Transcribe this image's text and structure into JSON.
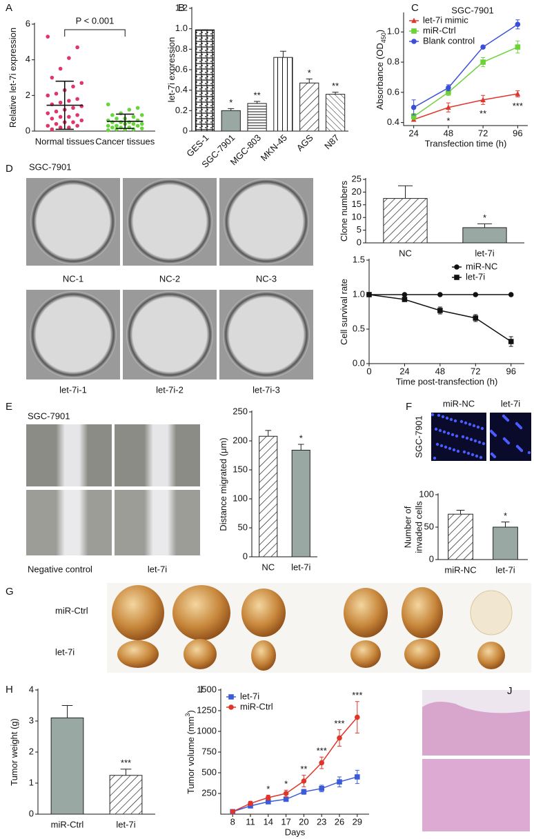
{
  "panel_letters": [
    "A",
    "B",
    "C",
    "D",
    "E",
    "F",
    "G",
    "H",
    "I",
    "J"
  ],
  "images": {
    "d_cell_line": "SGC-7901",
    "d_labels": [
      "NC-1",
      "NC-2",
      "NC-3",
      "let-7i-1",
      "let-7i-2",
      "let-7i-3"
    ],
    "e_cell_line": "SGC-7901",
    "e_labels": [
      "Negative control",
      "let-7i"
    ],
    "f_cell_line": "SGC-7901",
    "f_labels": [
      "miR-NC",
      "let-7i"
    ],
    "g_labels": [
      "miR-Ctrl",
      "let-7i"
    ]
  },
  "chart_data": [
    {
      "type": "strip",
      "ylabel": "Relative let-7i expression",
      "annotation": "P < 0.001",
      "categories": [
        "Normal tissues",
        "Cancer tissues"
      ],
      "colors": [
        "#e0356a",
        "#66d43a"
      ],
      "values": [
        [
          5.3,
          4.7,
          4.1,
          3.5,
          3.0,
          2.7,
          2.5,
          2.3,
          2.1,
          2.0,
          1.8,
          1.7,
          1.6,
          1.5,
          1.4,
          1.3,
          1.2,
          1.1,
          1.0,
          0.9,
          0.8,
          0.8,
          0.7,
          0.6,
          0.5,
          0.5,
          0.4,
          0.3,
          0.3,
          0.2,
          0.2,
          0.1
        ],
        [
          1.5,
          1.3,
          1.2,
          1.0,
          0.9,
          0.9,
          0.8,
          0.7,
          0.7,
          0.6,
          0.6,
          0.5,
          0.5,
          0.5,
          0.4,
          0.4,
          0.4,
          0.3,
          0.3,
          0.3,
          0.2,
          0.2,
          0.2,
          0.15,
          0.1,
          0.1,
          0.1,
          0.05
        ]
      ],
      "means": [
        1.45,
        0.55
      ],
      "errors": [
        1.35,
        0.4
      ],
      "ylim": [
        0,
        6
      ],
      "yticks": [
        0,
        2,
        4,
        6
      ]
    },
    {
      "type": "bar",
      "ylabel": "let-7i expression",
      "categories": [
        "GES-1",
        "SGC-7901",
        "MGC-803",
        "MKN-45",
        "AGS",
        "N87"
      ],
      "values": [
        0.99,
        0.2,
        0.27,
        0.72,
        0.47,
        0.36
      ],
      "errors": [
        0,
        0.02,
        0.02,
        0.06,
        0.04,
        0.02
      ],
      "annotations": [
        null,
        "*",
        "**",
        null,
        "*",
        "**"
      ],
      "patterns": [
        "grid",
        "solid",
        "horizontal",
        "vertical",
        "diagonal",
        "backdiagonal"
      ],
      "color": "#9aa8a4",
      "xtick_rotation": 45,
      "ylim": [
        0,
        1.2
      ],
      "yticks": [
        0,
        0.2,
        0.4,
        0.6,
        0.8,
        {
          "value": 1,
          "label": "1.0"
        },
        1.2
      ]
    },
    {
      "type": "line",
      "title": "SGC-7901",
      "ylabel": "Absorbance (OD",
      "ylabel_sub": "450",
      "ylabel_end": ")",
      "xlabel": "Transfection time (h)",
      "x": [
        24,
        48,
        72,
        96
      ],
      "xlim": [
        17,
        103
      ],
      "xticks": [
        24,
        48,
        72,
        96
      ],
      "ylim": [
        0.38,
        1.12
      ],
      "yticks": [
        0.4,
        0.6,
        0.8,
        {
          "value": 1,
          "label": "1.0"
        }
      ],
      "legend": "upper left",
      "series": [
        {
          "name": "let-7i mimic",
          "color": "#e0352b",
          "marker": "triangle",
          "values": [
            0.42,
            0.5,
            0.55,
            0.59
          ],
          "errors": [
            0.01,
            0.03,
            0.03,
            0.02
          ]
        },
        {
          "name": "miR-Ctrl",
          "color": "#6dd13a",
          "marker": "square",
          "values": [
            0.44,
            0.6,
            0.8,
            0.9
          ],
          "errors": [
            0.02,
            0.02,
            0.03,
            0.04
          ]
        },
        {
          "name": "Blank control",
          "color": "#3b4fd8",
          "marker": "circle",
          "values": [
            0.5,
            0.63,
            0.9,
            1.05
          ],
          "errors": [
            0.05,
            0.02,
            0.01,
            0.03
          ]
        }
      ],
      "annotations": [
        null,
        "*",
        "**",
        "***"
      ]
    },
    {
      "type": "bar",
      "ylabel": "Clone numbers",
      "categories": [
        "NC",
        "let-7i"
      ],
      "values": [
        17.5,
        6
      ],
      "errors": [
        5,
        1.5
      ],
      "annotations": [
        null,
        "*"
      ],
      "patterns": [
        "diagonal",
        "solid"
      ],
      "color": "#9aa8a4",
      "ylim": [
        0,
        25
      ],
      "yticks": [
        0,
        5,
        10,
        15,
        20,
        25
      ]
    },
    {
      "type": "line",
      "ylabel": "Cell survival rate",
      "xlabel": "Time post-transfection (h)",
      "x": [
        0,
        24,
        48,
        72,
        96
      ],
      "xlim": [
        0,
        105
      ],
      "xticks": [
        0,
        24,
        48,
        72,
        96
      ],
      "ylim": [
        0,
        1.5
      ],
      "yticks": [
        {
          "value": 0,
          "label": "0.0"
        },
        0.5,
        {
          "value": 1,
          "label": "1.0"
        },
        1.5
      ],
      "legend": "upper right",
      "series": [
        {
          "name": "miR-NC",
          "color": "#111111",
          "marker": "circle",
          "values": [
            1,
            1,
            1,
            1,
            1
          ],
          "errors": [
            0,
            0.01,
            0.01,
            0.01,
            0.01
          ]
        },
        {
          "name": "let-7i",
          "color": "#111111",
          "marker": "square",
          "values": [
            1,
            0.93,
            0.77,
            0.66,
            0.32
          ],
          "errors": [
            0,
            0.02,
            0.05,
            0.05,
            0.07
          ]
        }
      ]
    },
    {
      "type": "bar",
      "ylabel": "Distance migrated (μm)",
      "categories": [
        "NC",
        "let-7i"
      ],
      "values": [
        208,
        184
      ],
      "errors": [
        10,
        10
      ],
      "annotations": [
        null,
        "*"
      ],
      "patterns": [
        "diagonal",
        "solid"
      ],
      "color": "#9aa8a4",
      "ylim": [
        0,
        250
      ],
      "yticks": [
        0,
        50,
        100,
        150,
        200,
        250
      ]
    },
    {
      "type": "bar",
      "ylabel": [
        "Number of",
        "invaded cells"
      ],
      "categories": [
        "miR-NC",
        "let-7i"
      ],
      "values": [
        70,
        50
      ],
      "errors": [
        6,
        8
      ],
      "annotations": [
        null,
        "*"
      ],
      "patterns": [
        "diagonal",
        "solid"
      ],
      "color": "#9aa8a4",
      "ylim": [
        0,
        100
      ],
      "yticks": [
        0,
        50,
        100
      ]
    },
    {
      "type": "bar",
      "ylabel": "Tumor weight (g)",
      "categories": [
        "miR-Ctrl",
        "let-7i"
      ],
      "values": [
        3.1,
        1.25
      ],
      "errors": [
        0.4,
        0.2
      ],
      "annotations": [
        null,
        "***"
      ],
      "patterns": [
        "solid",
        "diagonal"
      ],
      "color": "#9aa8a4",
      "ylim": [
        0,
        4
      ],
      "yticks": [
        0,
        1,
        2,
        3,
        4
      ]
    },
    {
      "type": "line",
      "ylabel": "Tumor volume (mm",
      "ylabel_sup": "3",
      "ylabel_end": ")",
      "xlabel": "Days",
      "x": [
        8,
        11,
        14,
        17,
        20,
        23,
        26,
        29
      ],
      "xlim": [
        6,
        31
      ],
      "xticks": [
        8,
        11,
        14,
        17,
        20,
        23,
        26,
        29
      ],
      "ylim": [
        0,
        1500
      ],
      "yticks": [
        250,
        500,
        750,
        1000,
        1250,
        1500
      ],
      "legend": "upper left",
      "series": [
        {
          "name": "let-7i",
          "color": "#3b5bd8",
          "marker": "square",
          "values": [
            30,
            100,
            150,
            180,
            270,
            310,
            390,
            450
          ],
          "errors": [
            10,
            20,
            25,
            25,
            30,
            40,
            60,
            80
          ]
        },
        {
          "name": "miR-Ctrl",
          "color": "#e0352b",
          "marker": "circle",
          "values": [
            30,
            130,
            200,
            250,
            400,
            620,
            920,
            1170
          ],
          "errors": [
            10,
            25,
            30,
            40,
            70,
            70,
            100,
            190
          ]
        }
      ],
      "annotations": [
        null,
        null,
        "*",
        "*",
        "**",
        "***",
        "***",
        "***"
      ]
    }
  ]
}
